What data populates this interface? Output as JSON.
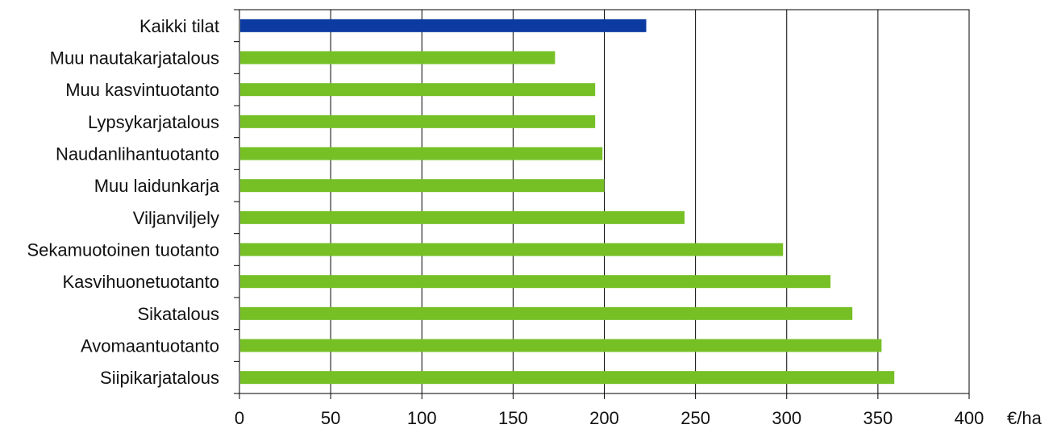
{
  "chart_data": {
    "type": "bar",
    "orientation": "horizontal",
    "categories": [
      "Kaikki tilat",
      "Muu nautakarjatalous",
      "Muu kasvintuotanto",
      "Lypsykarjatalous",
      "Naudanlihantuotanto",
      "Muu laidunkarja",
      "Viljanviljely",
      "Sekamuotoinen tuotanto",
      "Kasvihuonetuotanto",
      "Sikatalous",
      "Avomaantuotanto",
      "Siipikarjatalous"
    ],
    "values": [
      223,
      173,
      195,
      195,
      199,
      200,
      244,
      298,
      324,
      336,
      352,
      359
    ],
    "highlight_index": 0,
    "title": "",
    "xlabel": "€/ha",
    "ylabel": "",
    "xlim": [
      0,
      400
    ],
    "x_ticks": [
      "0",
      "50",
      "100",
      "150",
      "200",
      "250",
      "300",
      "350",
      "400"
    ],
    "grid": "vertical",
    "legend": "none",
    "colors": {
      "highlight": "#0b3aa0",
      "default": "#76c026",
      "grid": "#000000"
    }
  }
}
